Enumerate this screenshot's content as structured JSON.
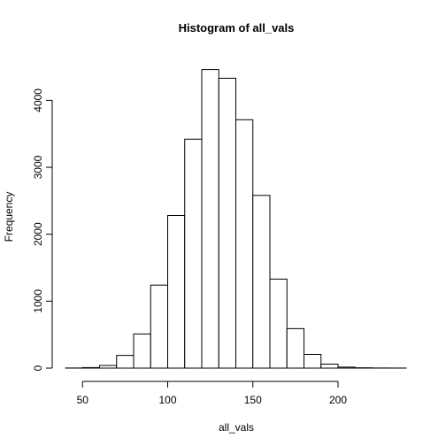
{
  "chart_data": {
    "type": "bar",
    "title": "Histogram of all_vals",
    "xlabel": "all_vals",
    "ylabel": "Frequency",
    "xlim": [
      40,
      240
    ],
    "ylim": [
      0,
      4600
    ],
    "x_ticks": [
      50,
      100,
      150,
      200
    ],
    "y_ticks": [
      0,
      1000,
      2000,
      3000,
      4000
    ],
    "bin_width": 10,
    "bins": [
      {
        "start": 40,
        "end": 50,
        "count": 2
      },
      {
        "start": 50,
        "end": 60,
        "count": 8
      },
      {
        "start": 60,
        "end": 70,
        "count": 40
      },
      {
        "start": 70,
        "end": 80,
        "count": 190
      },
      {
        "start": 80,
        "end": 90,
        "count": 510
      },
      {
        "start": 90,
        "end": 100,
        "count": 1240
      },
      {
        "start": 100,
        "end": 110,
        "count": 2280
      },
      {
        "start": 110,
        "end": 120,
        "count": 3420
      },
      {
        "start": 120,
        "end": 130,
        "count": 4460
      },
      {
        "start": 130,
        "end": 140,
        "count": 4330
      },
      {
        "start": 140,
        "end": 150,
        "count": 3710
      },
      {
        "start": 150,
        "end": 160,
        "count": 2580
      },
      {
        "start": 160,
        "end": 170,
        "count": 1330
      },
      {
        "start": 170,
        "end": 180,
        "count": 590
      },
      {
        "start": 180,
        "end": 190,
        "count": 205
      },
      {
        "start": 190,
        "end": 200,
        "count": 60
      },
      {
        "start": 200,
        "end": 210,
        "count": 15
      },
      {
        "start": 210,
        "end": 220,
        "count": 5
      },
      {
        "start": 220,
        "end": 230,
        "count": 2
      },
      {
        "start": 230,
        "end": 240,
        "count": 1
      }
    ],
    "grid": false
  }
}
